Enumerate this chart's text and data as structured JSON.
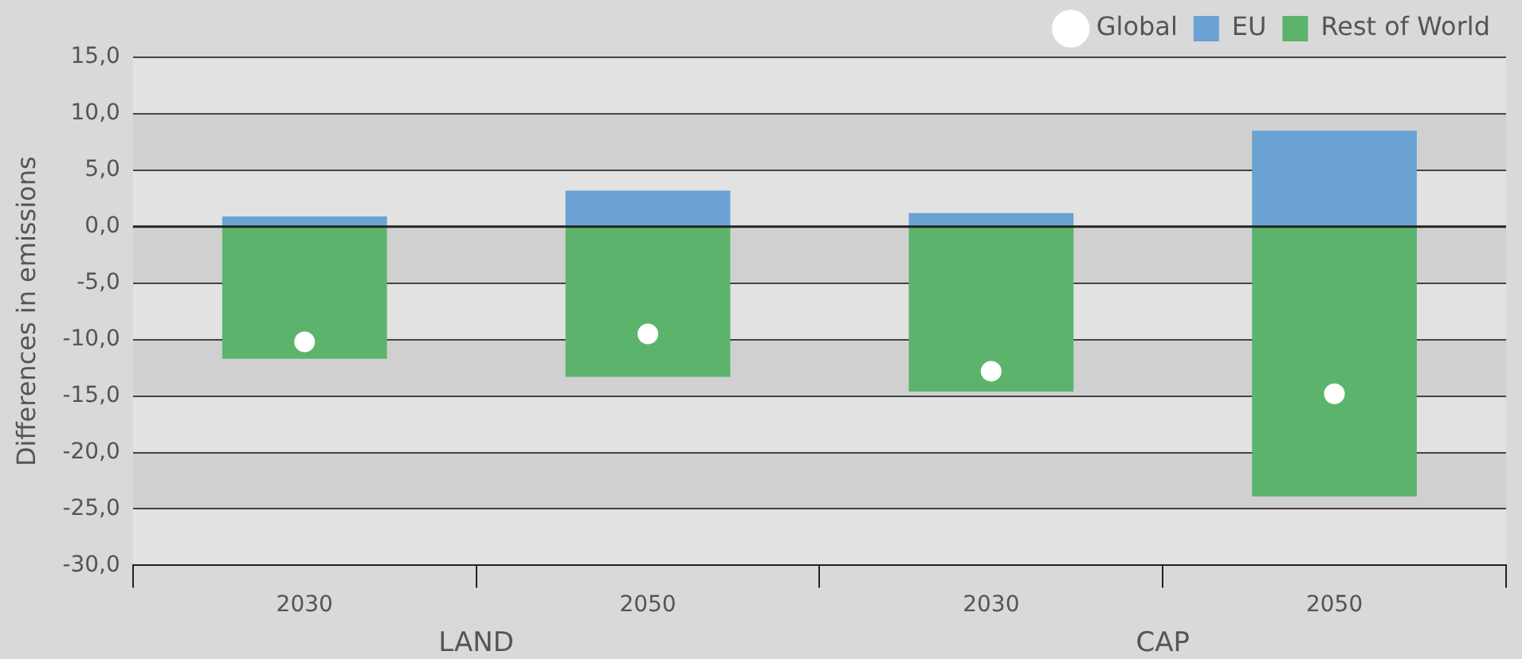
{
  "chart_data": {
    "type": "bar",
    "stacked": true,
    "ylabel": "Differences in emissions",
    "categories": [
      "2030",
      "2050",
      "2030",
      "2050"
    ],
    "series": [
      {
        "name": "EU",
        "color": "#6aa2d4",
        "values": [
          0.9,
          3.2,
          1.2,
          8.5
        ]
      },
      {
        "name": "Rest of World",
        "color": "#5cb46c",
        "values": [
          -11.7,
          -13.3,
          -14.6,
          -23.9
        ]
      },
      {
        "name": "Global",
        "type": "scatter",
        "color": "#ffffff",
        "values": [
          -10.2,
          -9.5,
          -12.8,
          -14.8
        ]
      }
    ],
    "annotations": [
      "LAND",
      "CAP"
    ],
    "ylim": [
      -30,
      15
    ],
    "yticks": [
      {
        "value": -30,
        "label": "-30,0"
      },
      {
        "value": -25,
        "label": "-25,0"
      },
      {
        "value": -20,
        "label": "-20,0"
      },
      {
        "value": -15,
        "label": "-15,0"
      },
      {
        "value": -10,
        "label": "-10,0"
      },
      {
        "value": -5,
        "label": "-5,0"
      },
      {
        "value": 0,
        "label": "0,0"
      },
      {
        "value": 5,
        "label": "5,0"
      },
      {
        "value": 10,
        "label": "10,0"
      },
      {
        "value": 15,
        "label": "15,0"
      }
    ],
    "grid": "y",
    "legend": "top right",
    "marker": "circle"
  }
}
